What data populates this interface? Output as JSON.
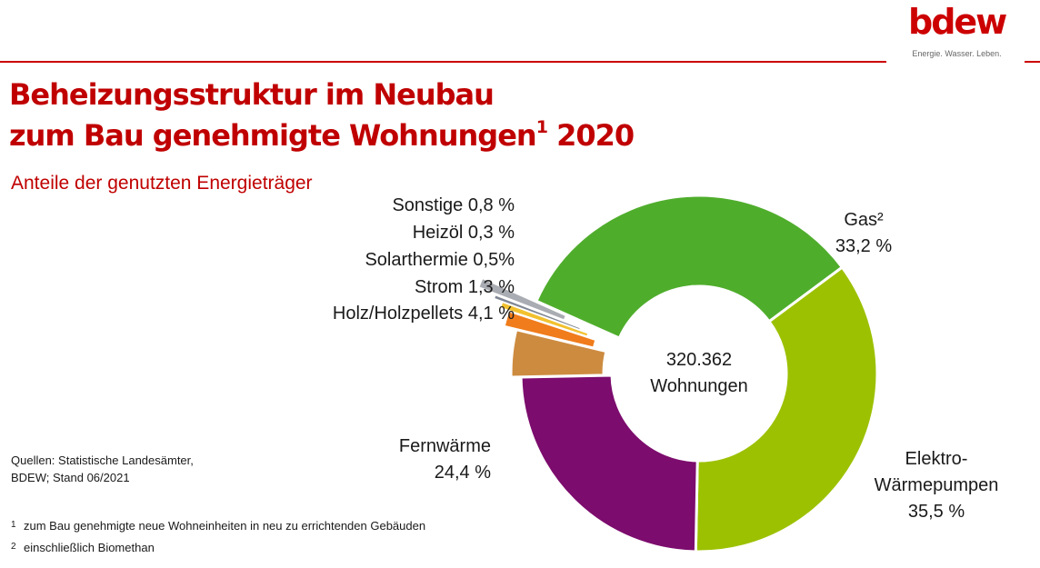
{
  "brand": {
    "logo_text": "bdew",
    "tagline": "Energie. Wasser. Leben."
  },
  "header": {
    "title_line1": "Beheizungsstruktur im Neubau",
    "title_line2": "zum Bau genehmigte Wohnungen",
    "title_sup": "1",
    "title_year": " 2020",
    "subtitle": "Anteile der genutzten Energieträger"
  },
  "source": {
    "line1": "Quellen:  Statistische Landesämter,",
    "line2": "BDEW; Stand 06/2021"
  },
  "footnotes": [
    {
      "marker": "1",
      "text": "zum Bau genehmigte neue Wohneinheiten in neu zu errichtenden Gebäuden"
    },
    {
      "marker": "2",
      "text": "einschließlich Biomethan"
    }
  ],
  "colors": {
    "brand_red": "#c00000",
    "text": "#1a1a1a"
  },
  "chart_data": {
    "type": "pie",
    "variant": "donut",
    "center_label": [
      "320.362",
      "Wohnungen"
    ],
    "series": [
      {
        "label": "Gas²",
        "value": 33.2,
        "value_label": "33,2 %",
        "color": "#4fad2c"
      },
      {
        "label": "Elektro-Wärmepumpen",
        "value": 35.5,
        "value_label": "35,5 %",
        "color": "#9cc101"
      },
      {
        "label": "Fernwärme",
        "value": 24.4,
        "value_label": "24,4 %",
        "color": "#7c0c6d"
      },
      {
        "label": "Holz/Holzpellets",
        "value": 4.1,
        "value_label": "4,1 %",
        "color": "#cd8b3f"
      },
      {
        "label": "Strom",
        "value": 1.3,
        "value_label": "1,3 %",
        "color": "#f07c1b"
      },
      {
        "label": "Solarthermie",
        "value": 0.5,
        "value_label": "0,5%",
        "color": "#f2c12e"
      },
      {
        "label": "Heizöl",
        "value": 0.3,
        "value_label": "0,3 %",
        "color": "#7f8694"
      },
      {
        "label": "Sonstige",
        "value": 0.8,
        "value_label": "0,8 %",
        "color": "#a9acb2"
      }
    ]
  }
}
